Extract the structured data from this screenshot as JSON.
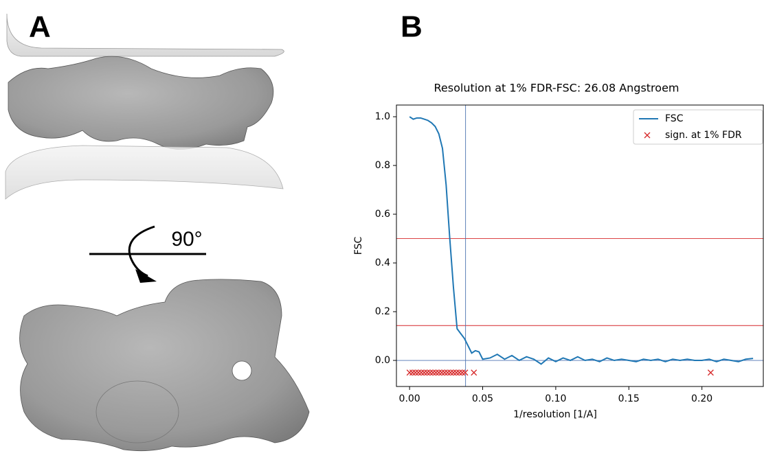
{
  "panels": {
    "a_label": "A",
    "rotation": "90°",
    "b_label": "B"
  },
  "chart_data": {
    "type": "line",
    "title": "Resolution at 1% FDR-FSC: 26.08 Angstroem",
    "x_label": "1/resolution [1/A]",
    "y_label": "FSC",
    "xlim": [
      -0.009,
      0.242
    ],
    "ylim": [
      -0.107,
      1.048
    ],
    "xticks": [
      {
        "value": 0,
        "label": "0.00"
      },
      {
        "value": 0.05,
        "label": "0.05"
      },
      {
        "value": 0.1,
        "label": "0.10"
      },
      {
        "value": 0.15,
        "label": "0.15"
      },
      {
        "value": 0.2,
        "label": "0.20"
      }
    ],
    "yticks": [
      {
        "value": 0,
        "label": "0.0"
      },
      {
        "value": 0.2,
        "label": "0.2"
      },
      {
        "value": 0.4,
        "label": "0.4"
      },
      {
        "value": 0.6,
        "label": "0.6"
      },
      {
        "value": 0.8,
        "label": "0.8"
      },
      {
        "value": 1,
        "label": "1.0"
      }
    ],
    "legend": "upper right",
    "reference_lines": [
      {
        "axis": "y",
        "value": 0.5,
        "color": "#d62728"
      },
      {
        "axis": "y",
        "value": 0.143,
        "color": "#d62728"
      },
      {
        "axis": "y",
        "value": 0,
        "color": "#4c72b0"
      },
      {
        "axis": "x",
        "value": 0.0383,
        "color": "#4c72b0"
      }
    ],
    "series": [
      {
        "name": "FSC",
        "type": "line",
        "color": "#1f77b4",
        "x": [
          0,
          0.0025,
          0.005,
          0.0075,
          0.01,
          0.0125,
          0.015,
          0.0175,
          0.02,
          0.0225,
          0.025,
          0.0275,
          0.03,
          0.0325,
          0.035,
          0.0375,
          0.04,
          0.0425,
          0.045,
          0.0475,
          0.05,
          0.055,
          0.06,
          0.065,
          0.07,
          0.075,
          0.08,
          0.085,
          0.09,
          0.095,
          0.1,
          0.105,
          0.11,
          0.115,
          0.12,
          0.125,
          0.13,
          0.135,
          0.14,
          0.145,
          0.15,
          0.155,
          0.16,
          0.165,
          0.17,
          0.175,
          0.18,
          0.185,
          0.19,
          0.195,
          0.2,
          0.205,
          0.21,
          0.215,
          0.22,
          0.225,
          0.23,
          0.235
        ],
        "values": [
          1.0,
          0.99,
          0.995,
          0.995,
          0.99,
          0.985,
          0.975,
          0.96,
          0.93,
          0.87,
          0.72,
          0.5,
          0.3,
          0.13,
          0.11,
          0.09,
          0.06,
          0.03,
          0.04,
          0.035,
          0.005,
          0.01,
          0.025,
          0.005,
          0.02,
          0.0,
          0.015,
          0.005,
          -0.015,
          0.01,
          -0.005,
          0.01,
          0.0,
          0.015,
          0.0,
          0.005,
          -0.005,
          0.01,
          0.0,
          0.005,
          0.0,
          -0.005,
          0.005,
          0.0,
          0.005,
          -0.005,
          0.005,
          0.0,
          0.005,
          0.0,
          0.0,
          0.005,
          -0.005,
          0.005,
          0.0,
          -0.005,
          0.005,
          0.008
        ]
      },
      {
        "name": "sign. at 1% FDR",
        "type": "scatter",
        "color": "#d62728",
        "x": [
          0,
          0.002,
          0.004,
          0.006,
          0.008,
          0.01,
          0.012,
          0.014,
          0.016,
          0.018,
          0.02,
          0.022,
          0.024,
          0.026,
          0.028,
          0.03,
          0.032,
          0.034,
          0.036,
          0.038,
          0.044,
          0.206
        ],
        "values": [
          -0.05,
          -0.05,
          -0.05,
          -0.05,
          -0.05,
          -0.05,
          -0.05,
          -0.05,
          -0.05,
          -0.05,
          -0.05,
          -0.05,
          -0.05,
          -0.05,
          -0.05,
          -0.05,
          -0.05,
          -0.05,
          -0.05,
          -0.05,
          -0.05,
          -0.05
        ]
      }
    ]
  }
}
